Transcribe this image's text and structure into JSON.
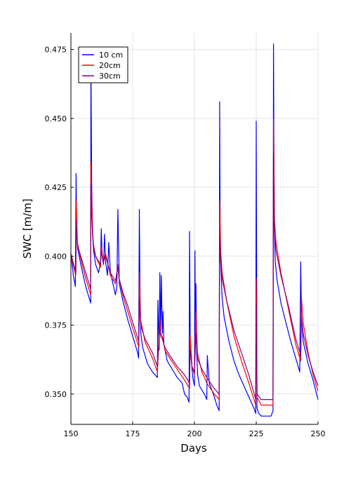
{
  "chart_data": {
    "type": "line",
    "title": "",
    "xlabel": "Days",
    "ylabel": "SWC [m/m]",
    "xlim": [
      150,
      250
    ],
    "ylim": [
      0.339,
      0.481
    ],
    "xticks": [
      150,
      175,
      200,
      225,
      250
    ],
    "xtick_labels": [
      "150",
      "175",
      "200",
      "225",
      "250"
    ],
    "yticks": [
      0.35,
      0.375,
      0.4,
      0.425,
      0.45,
      0.475
    ],
    "ytick_labels": [
      "0.350",
      "0.375",
      "0.400",
      "0.425",
      "0.450",
      "0.475"
    ],
    "grid": true,
    "legend_position": "top-left",
    "series": [
      {
        "name": "10 cm",
        "color": "#0000ff",
        "x": [
          150,
          151,
          151.8,
          152.1,
          152.3,
          152.7,
          154,
          156,
          157,
          158,
          158.1,
          158.4,
          158.7,
          159.2,
          160,
          161.2,
          162,
          162.3,
          162.6,
          163.2,
          163.6,
          164,
          164.8,
          165.3,
          166,
          168,
          168.6,
          169,
          169.6,
          171,
          173,
          175,
          176,
          177,
          177.4,
          177.7,
          178,
          178.3,
          179,
          181,
          183,
          185,
          185.2,
          185.7,
          186,
          186.3,
          186.6,
          187,
          187.3,
          187.6,
          188.3,
          189,
          191,
          193,
          195,
          196,
          197,
          197.8,
          198,
          198.3,
          199,
          199.5,
          200,
          200.2,
          200.4,
          200.6,
          200.9,
          201.3,
          202,
          204,
          205,
          205.2,
          205.5,
          206,
          208,
          209,
          210,
          210.2,
          210.4,
          210.7,
          211.2,
          212,
          214,
          216,
          218,
          220,
          222,
          224,
          224.8,
          225,
          225.3,
          226,
          227,
          229,
          231,
          231.8,
          232,
          232.3,
          232.7,
          233.5,
          235,
          237,
          239,
          241,
          242,
          242.6,
          243,
          243.3,
          244,
          246,
          248,
          250
        ],
        "y": [
          0.401,
          0.393,
          0.389,
          0.43,
          0.412,
          0.403,
          0.397,
          0.389,
          0.386,
          0.383,
          0.472,
          0.427,
          0.41,
          0.402,
          0.397,
          0.394,
          0.398,
          0.41,
          0.401,
          0.397,
          0.408,
          0.398,
          0.393,
          0.405,
          0.394,
          0.386,
          0.389,
          0.417,
          0.39,
          0.384,
          0.377,
          0.371,
          0.368,
          0.365,
          0.363,
          0.417,
          0.383,
          0.372,
          0.367,
          0.361,
          0.358,
          0.356,
          0.384,
          0.366,
          0.394,
          0.373,
          0.393,
          0.372,
          0.38,
          0.368,
          0.365,
          0.362,
          0.359,
          0.356,
          0.354,
          0.35,
          0.349,
          0.347,
          0.409,
          0.37,
          0.359,
          0.355,
          0.353,
          0.402,
          0.372,
          0.39,
          0.365,
          0.357,
          0.353,
          0.35,
          0.348,
          0.364,
          0.36,
          0.354,
          0.349,
          0.346,
          0.344,
          0.456,
          0.41,
          0.396,
          0.385,
          0.378,
          0.369,
          0.362,
          0.357,
          0.353,
          0.349,
          0.345,
          0.343,
          0.449,
          0.345,
          0.343,
          0.342,
          0.342,
          0.342,
          0.344,
          0.477,
          0.41,
          0.398,
          0.391,
          0.383,
          0.376,
          0.369,
          0.363,
          0.36,
          0.358,
          0.398,
          0.378,
          0.369,
          0.361,
          0.355,
          0.348
        ]
      },
      {
        "name": "20cm",
        "color": "#ff0000",
        "x": [
          150,
          152,
          152.2,
          152.6,
          154,
          156,
          158,
          158.1,
          158.5,
          159,
          160,
          162,
          162.3,
          163,
          164,
          166,
          168,
          169,
          169.5,
          171,
          173,
          175,
          177.5,
          177.7,
          178.2,
          180,
          183,
          185,
          186,
          186.3,
          187,
          188,
          190,
          193,
          196,
          198,
          198.3,
          199,
          200,
          200.6,
          201.2,
          203,
          205,
          208,
          210,
          210.2,
          210.6,
          211.2,
          213,
          216,
          219,
          222,
          224.8,
          225,
          225.3,
          227,
          231.8,
          232,
          232.4,
          233,
          235,
          238,
          241,
          243,
          243.3,
          244,
          246,
          248,
          250
        ],
        "y": [
          0.4,
          0.393,
          0.42,
          0.405,
          0.399,
          0.392,
          0.386,
          0.434,
          0.418,
          0.405,
          0.4,
          0.396,
          0.404,
          0.398,
          0.401,
          0.393,
          0.39,
          0.397,
          0.392,
          0.386,
          0.38,
          0.374,
          0.367,
          0.394,
          0.377,
          0.369,
          0.363,
          0.358,
          0.377,
          0.372,
          0.371,
          0.366,
          0.363,
          0.359,
          0.355,
          0.352,
          0.371,
          0.36,
          0.357,
          0.38,
          0.365,
          0.358,
          0.354,
          0.35,
          0.348,
          0.42,
          0.402,
          0.394,
          0.384,
          0.371,
          0.362,
          0.354,
          0.346,
          0.392,
          0.349,
          0.346,
          0.346,
          0.45,
          0.413,
          0.405,
          0.394,
          0.381,
          0.368,
          0.362,
          0.385,
          0.376,
          0.365,
          0.357,
          0.351
        ]
      },
      {
        "name": "30cm",
        "color": "#800080",
        "x": [
          150,
          152,
          152.2,
          152.6,
          154,
          156,
          158,
          158.1,
          158.5,
          159,
          160,
          162,
          162.3,
          163,
          164,
          166,
          168,
          169,
          169.5,
          171,
          173,
          175,
          177.5,
          177.7,
          178.2,
          180,
          183,
          185,
          186,
          186.3,
          187,
          188,
          190,
          193,
          196,
          198,
          198.3,
          199,
          200,
          200.6,
          201.2,
          203,
          205,
          208,
          210,
          210.2,
          210.6,
          211.2,
          213,
          216,
          219,
          222,
          224.8,
          225,
          225.3,
          227,
          231.8,
          232,
          232.4,
          233,
          235,
          238,
          241,
          243,
          243.3,
          244,
          246,
          248,
          250
        ],
        "y": [
          0.401,
          0.394,
          0.413,
          0.404,
          0.4,
          0.394,
          0.388,
          0.426,
          0.413,
          0.404,
          0.4,
          0.397,
          0.402,
          0.398,
          0.4,
          0.394,
          0.391,
          0.396,
          0.392,
          0.387,
          0.382,
          0.376,
          0.369,
          0.385,
          0.375,
          0.37,
          0.365,
          0.36,
          0.374,
          0.371,
          0.37,
          0.367,
          0.364,
          0.36,
          0.357,
          0.354,
          0.366,
          0.36,
          0.358,
          0.372,
          0.363,
          0.359,
          0.356,
          0.352,
          0.35,
          0.408,
          0.398,
          0.392,
          0.384,
          0.373,
          0.365,
          0.357,
          0.348,
          0.382,
          0.35,
          0.348,
          0.348,
          0.437,
          0.408,
          0.402,
          0.393,
          0.382,
          0.37,
          0.364,
          0.378,
          0.372,
          0.364,
          0.358,
          0.353
        ]
      }
    ]
  }
}
